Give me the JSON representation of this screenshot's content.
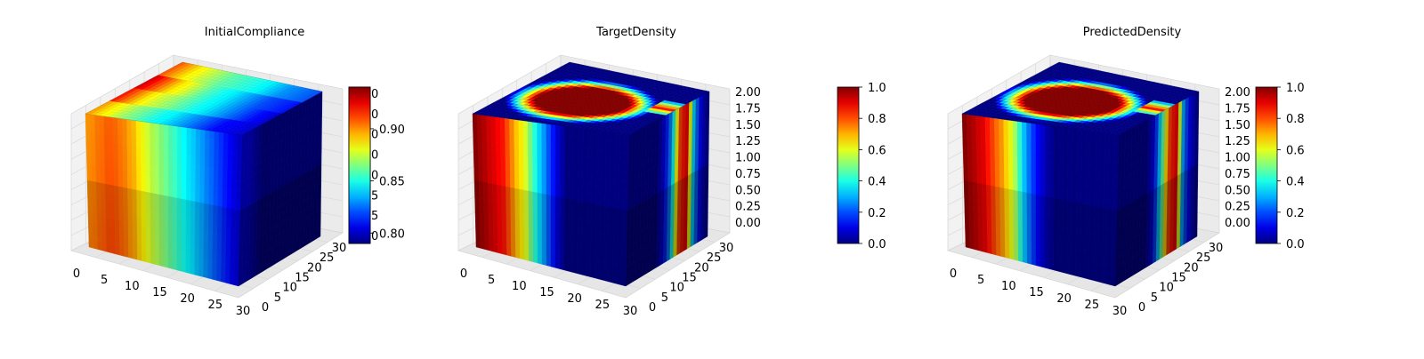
{
  "colors": {
    "background": "#ffffff",
    "axis_pane": "#f2f2f2",
    "grid": "#d9d9d9",
    "text": "#000000",
    "colormap": "jet"
  },
  "chart_data": [
    {
      "type": "heatmap",
      "subtype": "3d-voxel",
      "title": "InitialCompliance",
      "x_ticks": [
        "0",
        "5",
        "10",
        "15",
        "20",
        "25",
        "30"
      ],
      "y_ticks": [
        "0",
        "5",
        "10",
        "15",
        "20",
        "25",
        "30"
      ],
      "z_ticks": [],
      "colorbar": {
        "ticks": [
          "0.80",
          "0.85",
          "0.90"
        ],
        "clipped_ticks": [
          "0",
          "0",
          "0",
          "0",
          "0",
          "5",
          "5",
          "0"
        ],
        "range": [
          0.79,
          0.94
        ]
      },
      "field": {
        "pattern": "gradient",
        "front_values": [
          0.9,
          0.905,
          0.91,
          0.905,
          0.895,
          0.88,
          0.87,
          0.86,
          0.85,
          0.84,
          0.83,
          0.82,
          0.81,
          0.8
        ],
        "side_values": [
          0.8,
          0.8,
          0.795,
          0.79,
          0.79,
          0.79,
          0.79,
          0.79,
          0.79,
          0.79,
          0.79,
          0.79
        ],
        "top_values": [
          [
            0.91,
            0.88,
            0.86,
            0.85,
            0.83,
            0.82
          ],
          [
            0.93,
            0.89,
            0.86,
            0.84,
            0.82,
            0.81
          ],
          [
            0.92,
            0.88,
            0.86,
            0.84,
            0.82,
            0.8
          ],
          [
            0.9,
            0.87,
            0.85,
            0.83,
            0.81,
            0.8
          ]
        ]
      }
    },
    {
      "type": "heatmap",
      "subtype": "3d-voxel",
      "title": "TargetDensity",
      "x_ticks": [
        "0",
        "5",
        "10",
        "15",
        "20",
        "25",
        "30"
      ],
      "y_ticks": [
        "0",
        "5",
        "10",
        "15",
        "20",
        "25",
        "30"
      ],
      "z_ticks": [
        "0.00",
        "0.25",
        "0.50",
        "0.75",
        "1.00",
        "1.25",
        "1.50",
        "1.75",
        "2.00"
      ],
      "colorbar": {
        "ticks": [
          "0.0",
          "0.2",
          "0.4",
          "0.6",
          "0.8",
          "1.0"
        ],
        "range": [
          0.0,
          1.0
        ]
      },
      "field": {
        "pattern": "ring",
        "front_values": [
          1.0,
          0.95,
          0.9,
          0.85,
          0.7,
          0.6,
          0.4,
          0.25,
          0.1,
          0.0,
          0.0,
          0.0,
          0.0,
          0.0,
          0.0,
          0.0
        ],
        "side_values": [
          0.0,
          0.0,
          0.0,
          0.0,
          0.0,
          0.1,
          0.3,
          0.8,
          0.9,
          0.3,
          0.1,
          0.0
        ],
        "ring": {
          "cx": 0.45,
          "cy": 0.45,
          "r": 0.38
        }
      }
    },
    {
      "type": "heatmap",
      "subtype": "3d-voxel",
      "title": "PredictedDensity",
      "x_ticks": [
        "0",
        "5",
        "10",
        "15",
        "20",
        "25",
        "30"
      ],
      "y_ticks": [
        "0",
        "5",
        "10",
        "15",
        "20",
        "25",
        "30"
      ],
      "z_ticks": [
        "0.00",
        "0.25",
        "0.50",
        "0.75",
        "1.00",
        "1.25",
        "1.50",
        "1.75",
        "2.00"
      ],
      "colorbar": {
        "ticks": [
          "0.0",
          "0.2",
          "0.4",
          "0.6",
          "0.8",
          "1.0"
        ],
        "range": [
          0.0,
          1.0
        ]
      },
      "field": {
        "pattern": "ring",
        "front_values": [
          1.0,
          0.95,
          0.9,
          0.8,
          0.7,
          0.55,
          0.3,
          0.15,
          0.05,
          0.0,
          0.0,
          0.0,
          0.0,
          0.0,
          0.0,
          0.0
        ],
        "side_values": [
          0.0,
          0.0,
          0.0,
          0.0,
          0.0,
          0.1,
          0.4,
          0.8,
          0.9,
          0.25,
          0.1,
          0.0
        ],
        "ring": {
          "cx": 0.45,
          "cy": 0.45,
          "r": 0.38
        }
      }
    }
  ]
}
